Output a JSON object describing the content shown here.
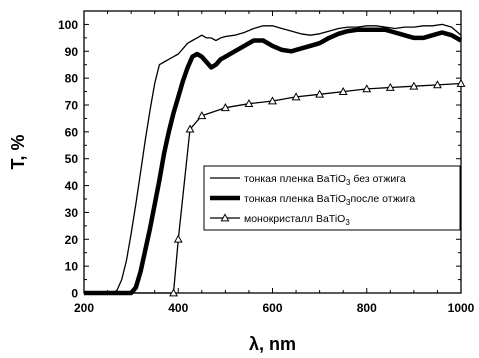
{
  "chart_data": {
    "type": "line",
    "title": "",
    "xlabel": "λ, nm",
    "ylabel": "T, %",
    "xlim": [
      200,
      1000
    ],
    "ylim": [
      0,
      105
    ],
    "xticks": [
      200,
      400,
      600,
      800,
      1000
    ],
    "yticks": [
      0,
      10,
      20,
      30,
      40,
      50,
      60,
      70,
      80,
      90,
      100
    ],
    "grid": false,
    "legend_position": "center-right",
    "series": [
      {
        "name": "тонкая пленка BaTiO3 без отжига",
        "name_parts": [
          "тонкая пленка BaTiO",
          "3",
          " без отжига"
        ],
        "style": "thin",
        "color": "#000000",
        "x": [
          200,
          260,
          270,
          280,
          290,
          300,
          310,
          320,
          330,
          340,
          350,
          360,
          370,
          380,
          390,
          400,
          410,
          420,
          430,
          440,
          450,
          460,
          470,
          480,
          490,
          500,
          520,
          540,
          560,
          580,
          600,
          620,
          640,
          660,
          680,
          700,
          720,
          740,
          760,
          780,
          800,
          820,
          840,
          860,
          880,
          900,
          920,
          940,
          960,
          980,
          1000
        ],
        "y": [
          0,
          0,
          1,
          5,
          12,
          22,
          33,
          45,
          57,
          68,
          78,
          85,
          86,
          87,
          88,
          89,
          91,
          93,
          94,
          95,
          96,
          95,
          95,
          94,
          95,
          95.5,
          96,
          97,
          98.5,
          99.5,
          99.5,
          98.5,
          97.5,
          96.5,
          96,
          96.5,
          97.5,
          98.5,
          99,
          99,
          99.5,
          99.5,
          99,
          98.5,
          99,
          99,
          99.5,
          99.5,
          100,
          99,
          96
        ]
      },
      {
        "name": "тонкая пленка BaTiO3после отжига",
        "name_parts": [
          "тонкая пленка BaTiO",
          "3",
          "после отжига"
        ],
        "style": "thick",
        "color": "#000000",
        "x": [
          200,
          300,
          310,
          320,
          330,
          340,
          350,
          360,
          370,
          380,
          390,
          400,
          410,
          420,
          430,
          440,
          450,
          460,
          470,
          480,
          490,
          500,
          520,
          540,
          560,
          580,
          600,
          620,
          640,
          660,
          680,
          700,
          720,
          740,
          760,
          780,
          800,
          820,
          840,
          860,
          880,
          900,
          920,
          940,
          960,
          980,
          1000
        ],
        "y": [
          0,
          0,
          2,
          8,
          16,
          24,
          33,
          42,
          52,
          60,
          67,
          73,
          79,
          84,
          88,
          89,
          88,
          86,
          84,
          85,
          87,
          88,
          90,
          92,
          94,
          94,
          92,
          90.5,
          90,
          91,
          92,
          93,
          95,
          96.5,
          97.5,
          98,
          98,
          98,
          98,
          97,
          96,
          95,
          95,
          96,
          97,
          96,
          94
        ]
      },
      {
        "name": "монокристалл BaTiO3",
        "name_parts": [
          "монокристалл BaTiO",
          "3",
          ""
        ],
        "style": "markers",
        "marker": "triangle",
        "color": "#000000",
        "x": [
          200,
          390,
          400,
          425,
          450,
          500,
          550,
          600,
          650,
          700,
          750,
          800,
          850,
          900,
          950,
          1000
        ],
        "y": [
          0,
          0,
          20,
          61,
          66,
          69,
          70.5,
          71.5,
          73,
          74,
          75,
          76,
          76.5,
          77,
          77.5,
          78
        ]
      }
    ]
  }
}
